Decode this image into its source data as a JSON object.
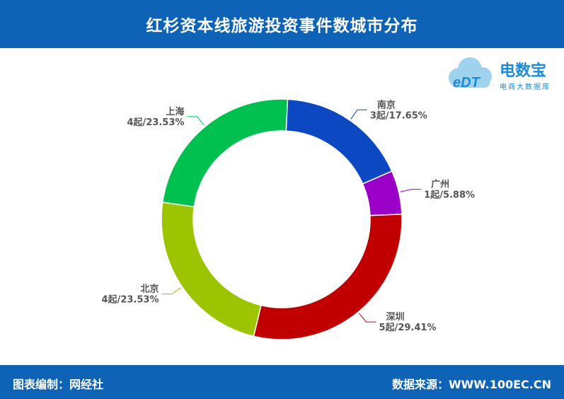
{
  "header": {
    "title": "红杉资本线旅游投资事件数城市分布"
  },
  "footer": {
    "left": "图表编制：网经社",
    "right": "数据来源：WWW.100EC.CN"
  },
  "logo": {
    "brand": "电数宝",
    "subtitle": "电商大数据库",
    "mark": "eDT"
  },
  "chart_data": {
    "type": "pie",
    "donut": true,
    "slices": [
      {
        "name": "南京",
        "count": 3,
        "percent": 17.65,
        "label": "3起/17.65%",
        "color": "#0b48c2"
      },
      {
        "name": "广州",
        "count": 1,
        "percent": 5.88,
        "label": "1起/5.88%",
        "color": "#9b00c8"
      },
      {
        "name": "深圳",
        "count": 5,
        "percent": 29.41,
        "label": "5起/29.41%",
        "color": "#c00000"
      },
      {
        "name": "北京",
        "count": 4,
        "percent": 23.53,
        "label": "4起/23.53%",
        "color": "#9dc400"
      },
      {
        "name": "上海",
        "count": 4,
        "percent": 23.53,
        "label": "4起/23.53%",
        "color": "#00c04f"
      }
    ]
  }
}
